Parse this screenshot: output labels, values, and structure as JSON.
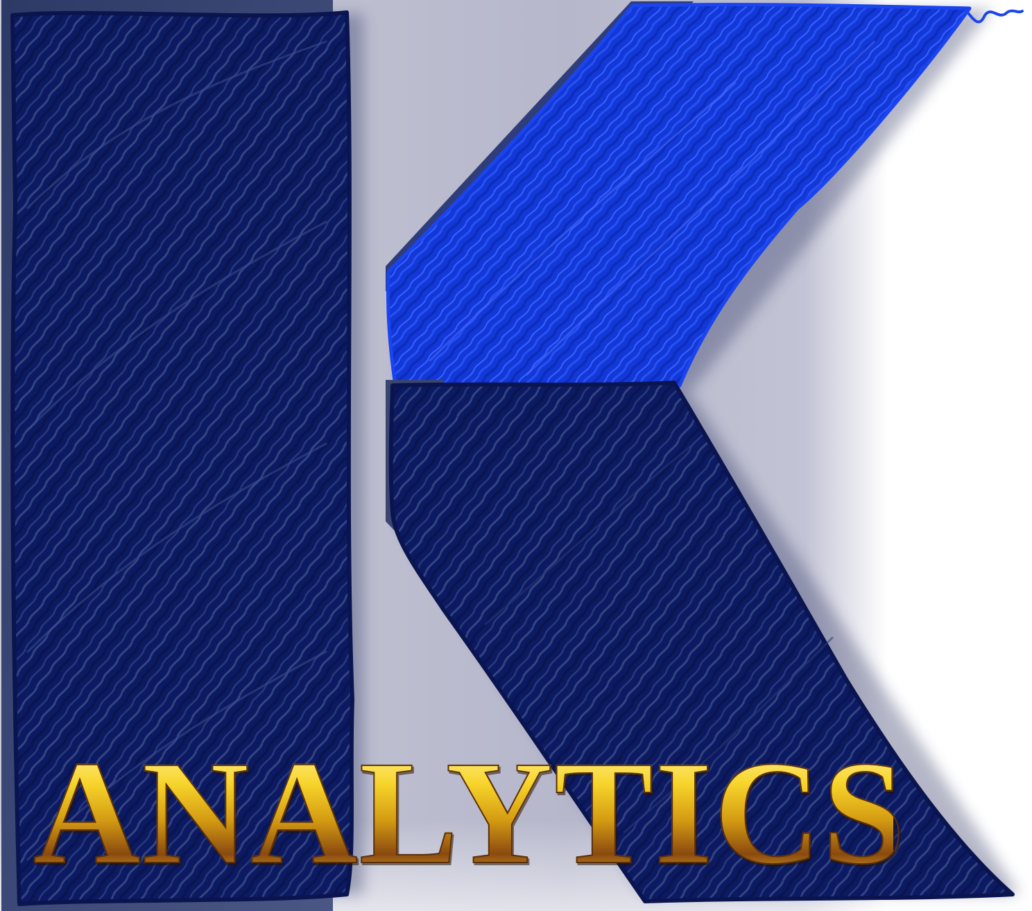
{
  "logo": {
    "wordmark": "ANALYTICS",
    "letterform": "K",
    "icon": "scribbled-k-logo-icon"
  },
  "colors": {
    "navy": "#0c1a63",
    "navy_dark": "#0a154f",
    "royal_blue": "#1238d8",
    "bright_blue": "#1a44ee",
    "panel_slate": "#3a4670",
    "gray_light": "#c9cbd9",
    "gray_mid": "#b0b1c8",
    "gold_light": "#fff3a0",
    "gold": "#f7d42a",
    "gold_dark": "#8a4a10",
    "white": "#ffffff"
  }
}
